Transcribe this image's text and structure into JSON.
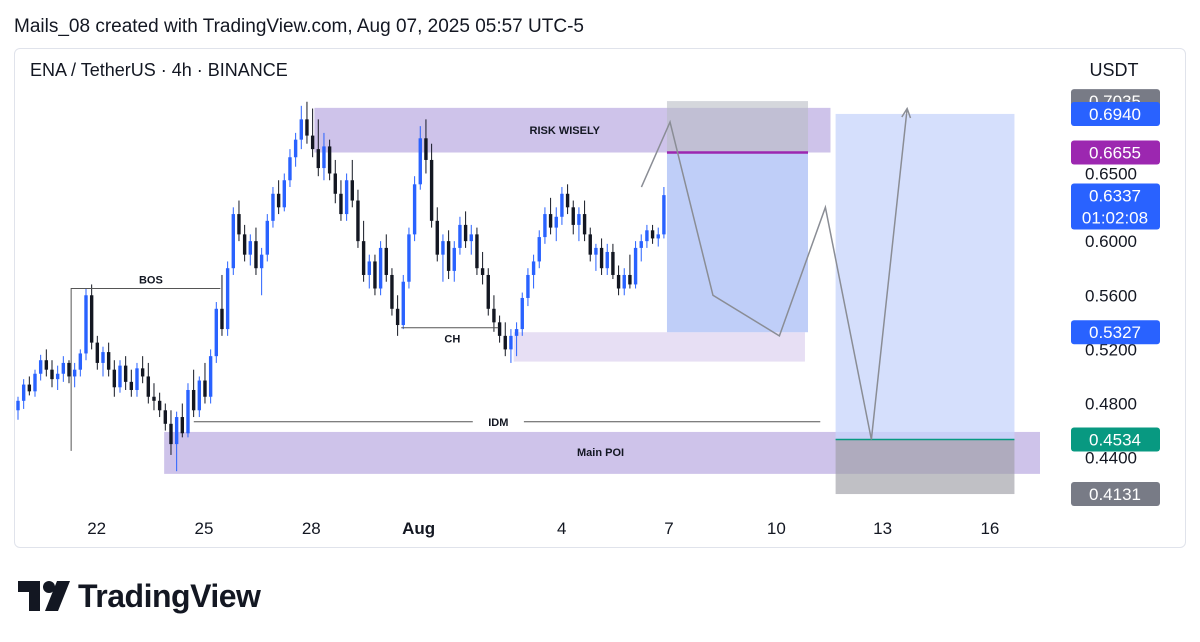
{
  "header": {
    "caption": "Mails_08 created with TradingView.com, Aug 07, 2025 05:57 UTC-5"
  },
  "brand": {
    "name": "TradingView"
  },
  "chart_data": {
    "type": "candlestick",
    "title": "ENA / TetherUS · 4h · BINANCE",
    "currency": "USDT",
    "x_ticks": [
      "22",
      "25",
      "28",
      "Aug",
      "4",
      "7",
      "10",
      "13",
      "16"
    ],
    "y_ticks": [
      "0.6500",
      "0.6000",
      "0.5600",
      "0.5200",
      "0.4800",
      "0.4400"
    ],
    "ylim": [
      0.405,
      0.708
    ],
    "price_labels": [
      {
        "id": "stop-high",
        "text": "0.7035",
        "value": 0.7035,
        "color": "#787b86"
      },
      {
        "id": "target",
        "text": "0.6940",
        "value": 0.694,
        "color": "#2962ff"
      },
      {
        "id": "entry-line",
        "text": "0.6655",
        "value": 0.6655,
        "color": "#9c27b0"
      },
      {
        "id": "last",
        "text": "0.6337",
        "value": 0.6337,
        "color": "#2962ff",
        "sub": "01:02:08"
      },
      {
        "id": "zone-top",
        "text": "0.5327",
        "value": 0.5327,
        "color": "#2962ff"
      },
      {
        "id": "poi-entry",
        "text": "0.4534",
        "value": 0.4534,
        "color": "#089981"
      },
      {
        "id": "stop-low",
        "text": "0.4131",
        "value": 0.4131,
        "color": "#787b86"
      }
    ],
    "annotations": [
      {
        "id": "bos",
        "text": "BOS"
      },
      {
        "id": "risk",
        "text": "RISK WISELY"
      },
      {
        "id": "ch",
        "text": "CH"
      },
      {
        "id": "idm",
        "text": "IDM"
      },
      {
        "id": "poi",
        "text": "Main POI"
      }
    ],
    "candles": [
      [
        0.475,
        0.485,
        0.468,
        0.482
      ],
      [
        0.482,
        0.498,
        0.476,
        0.494
      ],
      [
        0.494,
        0.5,
        0.486,
        0.489
      ],
      [
        0.489,
        0.505,
        0.485,
        0.502
      ],
      [
        0.502,
        0.516,
        0.497,
        0.512
      ],
      [
        0.512,
        0.52,
        0.5,
        0.505
      ],
      [
        0.505,
        0.512,
        0.492,
        0.498
      ],
      [
        0.498,
        0.508,
        0.49,
        0.502
      ],
      [
        0.502,
        0.515,
        0.496,
        0.51
      ],
      [
        0.51,
        0.512,
        0.495,
        0.5
      ],
      [
        0.5,
        0.51,
        0.492,
        0.505
      ],
      [
        0.505,
        0.52,
        0.5,
        0.517
      ],
      [
        0.517,
        0.565,
        0.512,
        0.56
      ],
      [
        0.56,
        0.568,
        0.52,
        0.525
      ],
      [
        0.525,
        0.53,
        0.505,
        0.51
      ],
      [
        0.51,
        0.522,
        0.5,
        0.518
      ],
      [
        0.518,
        0.525,
        0.5,
        0.505
      ],
      [
        0.505,
        0.512,
        0.485,
        0.492
      ],
      [
        0.492,
        0.512,
        0.488,
        0.508
      ],
      [
        0.508,
        0.515,
        0.49,
        0.496
      ],
      [
        0.496,
        0.505,
        0.485,
        0.49
      ],
      [
        0.49,
        0.51,
        0.485,
        0.506
      ],
      [
        0.506,
        0.515,
        0.495,
        0.5
      ],
      [
        0.5,
        0.51,
        0.48,
        0.485
      ],
      [
        0.485,
        0.495,
        0.475,
        0.482
      ],
      [
        0.482,
        0.488,
        0.47,
        0.475
      ],
      [
        0.475,
        0.48,
        0.46,
        0.465
      ],
      [
        0.465,
        0.475,
        0.442,
        0.45
      ],
      [
        0.45,
        0.474,
        0.43,
        0.47
      ],
      [
        0.47,
        0.48,
        0.455,
        0.458
      ],
      [
        0.458,
        0.495,
        0.455,
        0.49
      ],
      [
        0.49,
        0.505,
        0.47,
        0.475
      ],
      [
        0.475,
        0.5,
        0.47,
        0.497
      ],
      [
        0.497,
        0.51,
        0.48,
        0.485
      ],
      [
        0.485,
        0.52,
        0.48,
        0.515
      ],
      [
        0.515,
        0.555,
        0.51,
        0.55
      ],
      [
        0.55,
        0.575,
        0.53,
        0.535
      ],
      [
        0.535,
        0.585,
        0.53,
        0.58
      ],
      [
        0.58,
        0.625,
        0.575,
        0.62
      ],
      [
        0.62,
        0.63,
        0.6,
        0.605
      ],
      [
        0.605,
        0.612,
        0.585,
        0.59
      ],
      [
        0.59,
        0.605,
        0.582,
        0.6
      ],
      [
        0.6,
        0.61,
        0.575,
        0.58
      ],
      [
        0.58,
        0.595,
        0.56,
        0.59
      ],
      [
        0.59,
        0.62,
        0.585,
        0.615
      ],
      [
        0.615,
        0.64,
        0.61,
        0.635
      ],
      [
        0.635,
        0.645,
        0.62,
        0.625
      ],
      [
        0.625,
        0.65,
        0.622,
        0.645
      ],
      [
        0.645,
        0.668,
        0.64,
        0.662
      ],
      [
        0.662,
        0.68,
        0.655,
        0.675
      ],
      [
        0.675,
        0.7,
        0.668,
        0.69
      ],
      [
        0.69,
        0.703,
        0.672,
        0.678
      ],
      [
        0.678,
        0.698,
        0.662,
        0.668
      ],
      [
        0.668,
        0.69,
        0.648,
        0.654
      ],
      [
        0.654,
        0.68,
        0.645,
        0.67
      ],
      [
        0.67,
        0.675,
        0.645,
        0.65
      ],
      [
        0.65,
        0.66,
        0.628,
        0.635
      ],
      [
        0.635,
        0.645,
        0.615,
        0.62
      ],
      [
        0.62,
        0.65,
        0.615,
        0.645
      ],
      [
        0.645,
        0.66,
        0.625,
        0.63
      ],
      [
        0.63,
        0.638,
        0.595,
        0.6
      ],
      [
        0.6,
        0.615,
        0.57,
        0.575
      ],
      [
        0.575,
        0.59,
        0.565,
        0.585
      ],
      [
        0.585,
        0.59,
        0.56,
        0.565
      ],
      [
        0.565,
        0.6,
        0.56,
        0.595
      ],
      [
        0.595,
        0.605,
        0.57,
        0.575
      ],
      [
        0.575,
        0.58,
        0.545,
        0.55
      ],
      [
        0.55,
        0.56,
        0.53,
        0.538
      ],
      [
        0.538,
        0.575,
        0.535,
        0.57
      ],
      [
        0.57,
        0.61,
        0.565,
        0.605
      ],
      [
        0.605,
        0.648,
        0.6,
        0.642
      ],
      [
        0.642,
        0.685,
        0.638,
        0.676
      ],
      [
        0.676,
        0.69,
        0.65,
        0.66
      ],
      [
        0.66,
        0.672,
        0.61,
        0.615
      ],
      [
        0.615,
        0.625,
        0.585,
        0.59
      ],
      [
        0.59,
        0.605,
        0.57,
        0.6
      ],
      [
        0.6,
        0.608,
        0.572,
        0.578
      ],
      [
        0.578,
        0.6,
        0.57,
        0.595
      ],
      [
        0.595,
        0.618,
        0.59,
        0.612
      ],
      [
        0.612,
        0.622,
        0.595,
        0.6
      ],
      [
        0.6,
        0.612,
        0.59,
        0.605
      ],
      [
        0.605,
        0.61,
        0.575,
        0.58
      ],
      [
        0.58,
        0.592,
        0.568,
        0.575
      ],
      [
        0.575,
        0.58,
        0.545,
        0.55
      ],
      [
        0.55,
        0.56,
        0.533,
        0.54
      ],
      [
        0.54,
        0.545,
        0.525,
        0.53
      ],
      [
        0.53,
        0.54,
        0.515,
        0.52
      ],
      [
        0.52,
        0.535,
        0.51,
        0.53
      ],
      [
        0.53,
        0.54,
        0.515,
        0.535
      ],
      [
        0.535,
        0.562,
        0.53,
        0.558
      ],
      [
        0.558,
        0.58,
        0.552,
        0.575
      ],
      [
        0.575,
        0.59,
        0.565,
        0.585
      ],
      [
        0.585,
        0.608,
        0.58,
        0.603
      ],
      [
        0.603,
        0.625,
        0.598,
        0.62
      ],
      [
        0.62,
        0.632,
        0.605,
        0.61
      ],
      [
        0.61,
        0.625,
        0.6,
        0.618
      ],
      [
        0.618,
        0.64,
        0.612,
        0.635
      ],
      [
        0.635,
        0.642,
        0.62,
        0.625
      ],
      [
        0.625,
        0.63,
        0.605,
        0.612
      ],
      [
        0.612,
        0.625,
        0.6,
        0.62
      ],
      [
        0.62,
        0.63,
        0.6,
        0.605
      ],
      [
        0.605,
        0.61,
        0.585,
        0.59
      ],
      [
        0.59,
        0.598,
        0.578,
        0.595
      ],
      [
        0.595,
        0.602,
        0.575,
        0.58
      ],
      [
        0.58,
        0.598,
        0.575,
        0.592
      ],
      [
        0.592,
        0.598,
        0.572,
        0.575
      ],
      [
        0.575,
        0.582,
        0.56,
        0.565
      ],
      [
        0.565,
        0.58,
        0.56,
        0.575
      ],
      [
        0.575,
        0.59,
        0.565,
        0.568
      ],
      [
        0.568,
        0.6,
        0.565,
        0.595
      ],
      [
        0.595,
        0.605,
        0.585,
        0.6
      ],
      [
        0.6,
        0.612,
        0.595,
        0.608
      ],
      [
        0.608,
        0.612,
        0.598,
        0.602
      ],
      [
        0.602,
        0.61,
        0.596,
        0.605
      ],
      [
        0.605,
        0.64,
        0.602,
        0.634
      ]
    ],
    "fwd_path": [
      [
        0.61,
        0.64
      ],
      [
        0.638,
        0.688
      ],
      [
        0.68,
        0.56
      ],
      [
        0.745,
        0.53
      ],
      [
        0.79,
        0.625
      ],
      [
        0.835,
        0.4534
      ],
      [
        0.87,
        0.698
      ]
    ]
  }
}
